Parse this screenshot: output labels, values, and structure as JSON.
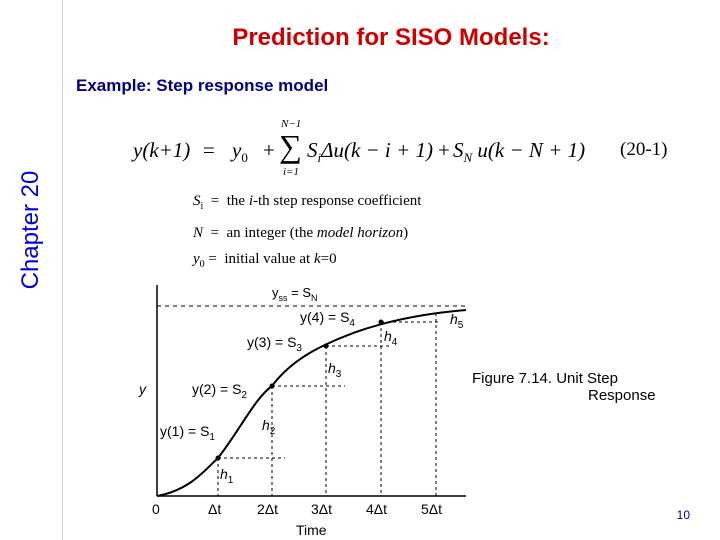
{
  "sidebar": {
    "chapter_label": "Chapter 20"
  },
  "slide": {
    "title": "Prediction for SISO Models:",
    "subtitle": "Example: Step response model",
    "page_number": "10"
  },
  "equation": {
    "lhs": "y(k+1)",
    "equals": "=",
    "y0": "y",
    "y0_sub": "0",
    "plus1": "+",
    "sum_upper": "N−1",
    "sum_symbol": "∑",
    "sum_lower": "i=1",
    "term1": "S",
    "term1_sub": "i",
    "term1_rest": "Δu(k − i + 1)",
    "plus2": "+",
    "term2": "S",
    "term2_sub": "N",
    "term2_rest": "u(k − N + 1)",
    "number": "(20-1)"
  },
  "definitions": [
    {
      "sym": "S",
      "sub": "i",
      "eq": "=",
      "pre": "the",
      "ital": "i",
      "post": "-th step response  coefficient"
    },
    {
      "sym": "N",
      "sub": "",
      "eq": "=",
      "pre": "an  integer (the",
      "ital": "model horizon",
      "post": ")"
    },
    {
      "sym": "y",
      "sub": "0",
      "eq": "=",
      "pre": "initial value at",
      "ital": "k",
      "post": "=0"
    }
  ],
  "figure": {
    "caption_line1": "Figure 7.14.  Unit Step",
    "caption_line2": "Response",
    "y_axis_label": "y",
    "x_axis_label": "Time",
    "x_ticks": [
      "0",
      "Δt",
      "2Δt",
      "3Δt",
      "4Δt",
      "5Δt"
    ],
    "point_labels": [
      "y(1) = S",
      "y(2) = S",
      "y(3) = S",
      "y(4) = S"
    ],
    "point_label_subs": [
      "1",
      "2",
      "3",
      "4"
    ],
    "yss_label": "y",
    "yss_sub": "ss",
    "yss_rest": " = S",
    "yss_rest_sub": "N",
    "h_labels": [
      "h",
      "h",
      "h",
      "h",
      "h"
    ],
    "h_subs": [
      "1",
      "2",
      "3",
      "4",
      "5"
    ]
  }
}
